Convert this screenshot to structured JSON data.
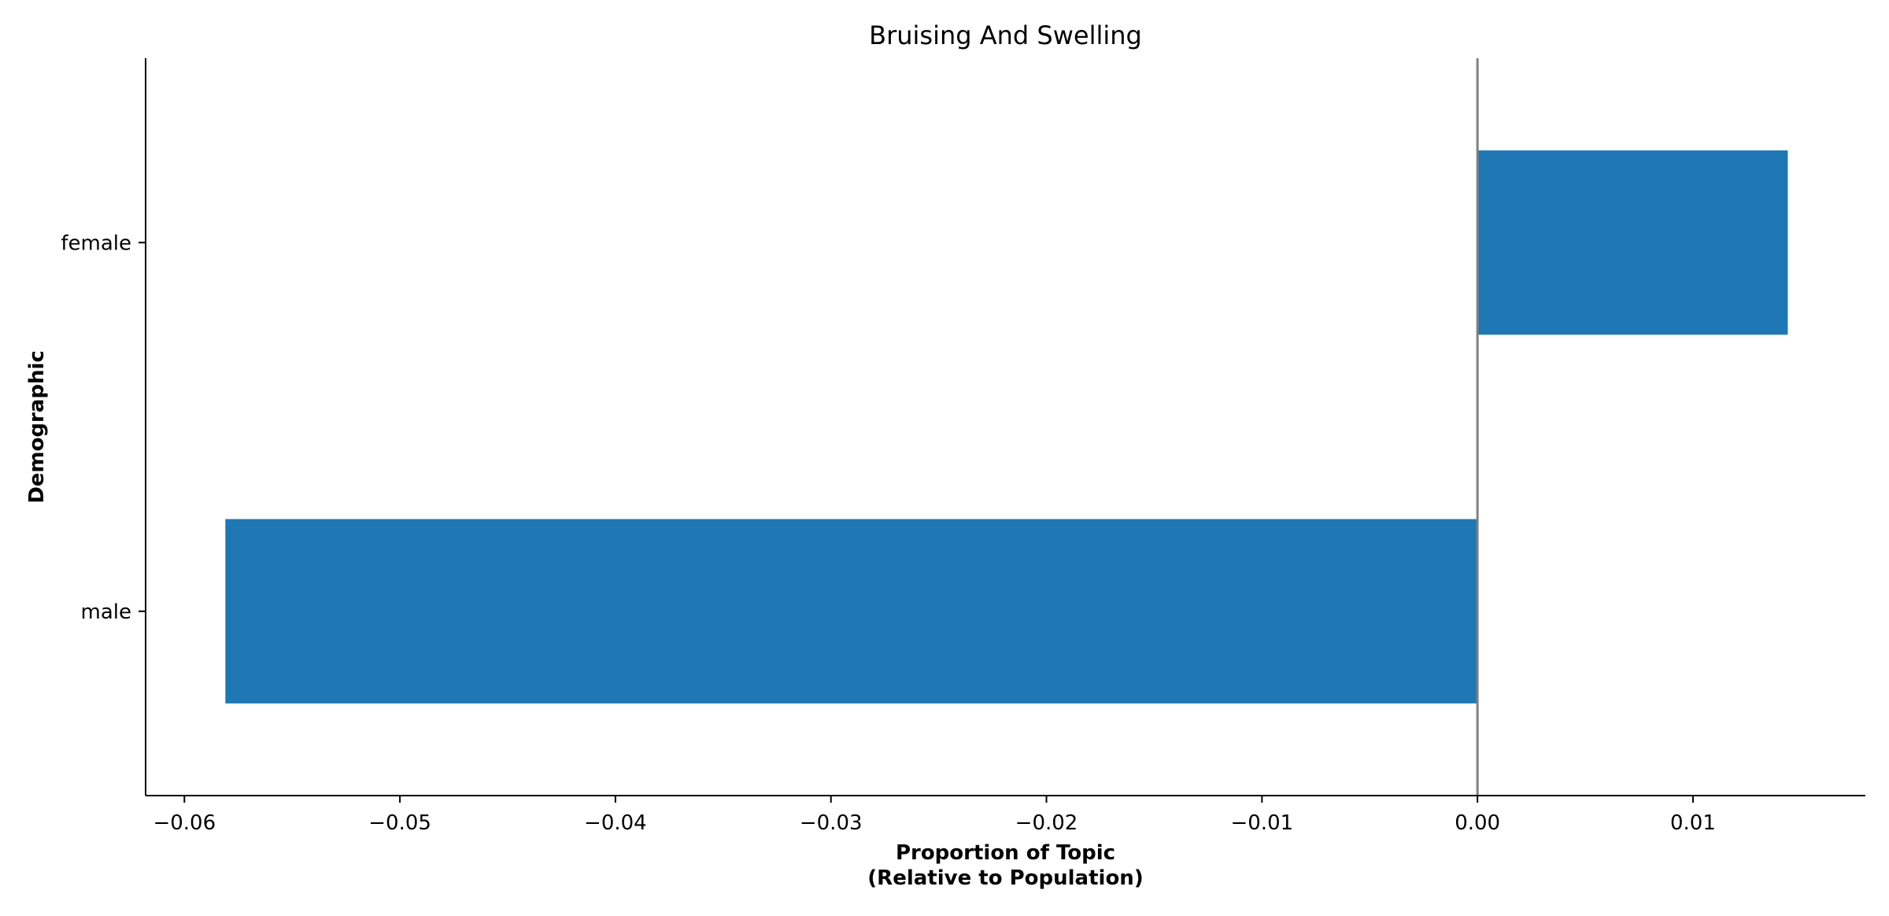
{
  "chart_data": {
    "type": "bar",
    "orientation": "horizontal",
    "title": "Bruising And Swelling",
    "xlabel_lines": [
      "Proportion of Topic",
      "(Relative to Population)"
    ],
    "ylabel": "Demographic",
    "categories": [
      "female",
      "male"
    ],
    "values": [
      0.0144,
      -0.0581
    ],
    "xlim": [
      -0.0618,
      0.018
    ],
    "xticks": [
      -0.06,
      -0.05,
      -0.04,
      -0.03,
      -0.02,
      -0.01,
      0.0,
      0.01
    ],
    "xtick_labels": [
      "−0.06",
      "−0.05",
      "−0.04",
      "−0.03",
      "−0.02",
      "−0.01",
      "0.00",
      "0.01"
    ],
    "zero_line": true,
    "grid": false,
    "legend": "none",
    "colors": {
      "bar": "#1f77b4",
      "zero_line": "#808080",
      "axis": "#000000"
    }
  }
}
